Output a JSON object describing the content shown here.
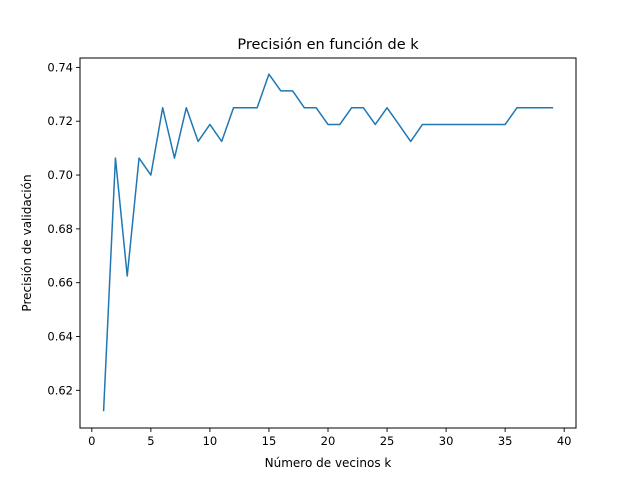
{
  "chart_data": {
    "type": "line",
    "title": "Precisión en función de k",
    "xlabel": "Número de vecinos k",
    "ylabel": "Precisión de validación",
    "xlim": [
      -1,
      41
    ],
    "ylim": [
      0.606,
      0.7435
    ],
    "xticks": [
      0,
      5,
      10,
      15,
      20,
      25,
      30,
      35,
      40
    ],
    "yticks": [
      0.62,
      0.64,
      0.66,
      0.68,
      0.7,
      0.72,
      0.74
    ],
    "ytick_decimals": 2,
    "grid": false,
    "line_color": "#1f77b4",
    "series": [
      {
        "x": [
          1,
          2,
          3,
          4,
          5,
          6,
          7,
          8,
          9,
          10,
          11,
          12,
          13,
          14,
          15,
          16,
          17,
          18,
          19,
          20,
          21,
          22,
          23,
          24,
          25,
          26,
          27,
          28,
          29,
          30,
          31,
          32,
          33,
          34,
          35,
          36,
          37,
          38,
          39
        ],
        "values": [
          0.6125,
          0.7063,
          0.6625,
          0.7063,
          0.7,
          0.725,
          0.7063,
          0.725,
          0.7125,
          0.7188,
          0.7125,
          0.725,
          0.725,
          0.725,
          0.7375,
          0.7313,
          0.7313,
          0.725,
          0.725,
          0.7188,
          0.7188,
          0.725,
          0.725,
          0.7188,
          0.725,
          0.7188,
          0.7125,
          0.7188,
          0.7188,
          0.7188,
          0.7188,
          0.7188,
          0.7188,
          0.7188,
          0.7188,
          0.725,
          0.725,
          0.725,
          0.725
        ]
      }
    ]
  }
}
